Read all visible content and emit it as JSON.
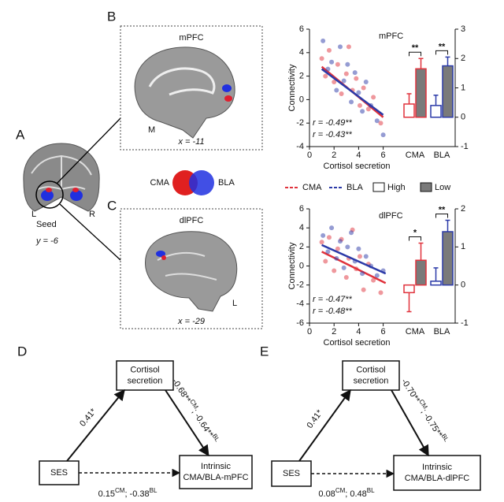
{
  "panels": {
    "a": "A",
    "b": "B",
    "c": "C",
    "d": "D",
    "e": "E"
  },
  "seed": {
    "left": "L",
    "right": "R",
    "label": "Seed",
    "coord": "y = -6"
  },
  "brain_b": {
    "title": "mPFC",
    "view": "M",
    "coord": "x = -11"
  },
  "brain_c": {
    "title": "dlPFC",
    "view": "L",
    "coord": "x = -29"
  },
  "overlap": {
    "left": "CMA",
    "right": "BLA"
  },
  "chart_data": [
    {
      "type": "scatter",
      "title": "mPFC",
      "xlabel": "Cortisol secretion",
      "ylabel": "Connectivity",
      "xlim": [
        0,
        7.5
      ],
      "ylim": [
        -4,
        6
      ],
      "xticks": [
        0,
        2,
        4,
        6
      ],
      "yticks": [
        -4,
        -2,
        0,
        2,
        4,
        6
      ],
      "series": [
        {
          "name": "CMA",
          "color": "#e0323c",
          "annotation": "r = -0.49**",
          "x": [
            1.0,
            1.3,
            1.6,
            2.0,
            2.3,
            2.6,
            3.0,
            3.2,
            3.5,
            3.8,
            4.1,
            4.4,
            4.8,
            5.2,
            5.8
          ],
          "y": [
            3.5,
            2.0,
            4.2,
            1.5,
            3.0,
            0.5,
            2.2,
            4.5,
            0.8,
            1.8,
            -0.5,
            1.0,
            -0.8,
            0.2,
            -2.0
          ],
          "trend": [
            [
              1,
              2.8
            ],
            [
              6,
              -1.5
            ]
          ]
        },
        {
          "name": "BLA",
          "color": "#2b3aa8",
          "annotation": "r = -0.43**",
          "x": [
            1.1,
            1.5,
            1.8,
            2.2,
            2.5,
            2.8,
            3.1,
            3.4,
            3.7,
            4.0,
            4.3,
            4.6,
            5.0,
            5.5,
            6.0
          ],
          "y": [
            5.0,
            2.6,
            3.2,
            0.8,
            4.5,
            1.6,
            3.0,
            -0.2,
            2.3,
            0.6,
            -1.0,
            1.5,
            -0.5,
            -1.8,
            -3.0
          ],
          "trend": [
            [
              1,
              2.6
            ],
            [
              6,
              -1.3
            ]
          ]
        }
      ]
    },
    {
      "type": "bar",
      "categories": [
        "CMA",
        "BLA"
      ],
      "edge_colors": [
        "#e0323c",
        "#2b3aa8"
      ],
      "ylim": [
        -1,
        3
      ],
      "yticks": [
        -1,
        0,
        1,
        2,
        3
      ],
      "significance": [
        "**",
        "**"
      ],
      "series": [
        {
          "name": "High",
          "color": "#ffffff",
          "values": [
            0.45,
            0.4
          ],
          "errors": [
            0.35,
            0.35
          ]
        },
        {
          "name": "Low",
          "color": "#7a7a7a",
          "values": [
            1.65,
            1.75
          ],
          "errors": [
            0.35,
            0.3
          ]
        }
      ]
    },
    {
      "type": "scatter",
      "title": "dlPFC",
      "xlabel": "Cortisol secretion",
      "ylabel": "Connectivity",
      "xlim": [
        0,
        7.5
      ],
      "ylim": [
        -6,
        6
      ],
      "xticks": [
        0,
        2,
        4,
        6
      ],
      "yticks": [
        -6,
        -4,
        -2,
        0,
        2,
        4,
        6
      ],
      "series": [
        {
          "color": "#e0323c",
          "annotation": "r = -0.47**",
          "x": [
            1.0,
            1.3,
            1.6,
            2.0,
            2.3,
            2.6,
            3.0,
            3.2,
            3.5,
            3.8,
            4.1,
            4.4,
            4.8,
            5.2,
            5.8
          ],
          "y": [
            2.5,
            0.5,
            3.0,
            -0.5,
            1.8,
            2.8,
            -1.2,
            0.8,
            3.8,
            -0.3,
            1.0,
            -2.5,
            0.2,
            -1.5,
            -2.8
          ],
          "trend": [
            [
              1,
              1.5
            ],
            [
              6.2,
              -1.8
            ]
          ]
        },
        {
          "color": "#2b3aa8",
          "annotation": "r = -0.48**",
          "x": [
            1.1,
            1.5,
            1.8,
            2.2,
            2.5,
            2.8,
            3.1,
            3.4,
            3.7,
            4.0,
            4.3,
            4.6,
            5.0,
            5.5,
            6.0
          ],
          "y": [
            3.2,
            1.5,
            4.0,
            0.8,
            2.6,
            -0.2,
            2.0,
            3.5,
            0.5,
            1.8,
            -0.8,
            1.0,
            0.0,
            -1.0,
            -0.5
          ],
          "trend": [
            [
              1,
              2.2
            ],
            [
              6.2,
              -0.8
            ]
          ]
        }
      ]
    },
    {
      "type": "bar",
      "categories": [
        "CMA",
        "BLA"
      ],
      "edge_colors": [
        "#e0323c",
        "#2b3aa8"
      ],
      "ylim": [
        -1,
        2
      ],
      "yticks": [
        -1,
        0,
        1,
        2
      ],
      "significance": [
        "*",
        "**"
      ],
      "series": [
        {
          "color": "#ffffff",
          "values": [
            -0.2,
            0.1
          ],
          "errors": [
            0.5,
            0.35
          ]
        },
        {
          "color": "#7a7a7a",
          "values": [
            0.65,
            1.4
          ],
          "errors": [
            0.45,
            0.3
          ]
        }
      ]
    }
  ],
  "mediation": [
    {
      "mediator": [
        "Cortisol",
        "secretion"
      ],
      "x": "SES",
      "y": [
        "Intrinsic",
        "CMA/BLA-mPFC"
      ],
      "a": "0.41*",
      "b": [
        "-0.68**",
        "CM",
        "; -0.64**",
        "BL"
      ],
      "c": [
        "0.15",
        "CM",
        "; -0.38",
        "BL"
      ]
    },
    {
      "mediator": [
        "Cortisol",
        "secretion"
      ],
      "x": "SES",
      "y": [
        "Intrinsic",
        "CMA/BLA-dlPFC"
      ],
      "a": "0.41*",
      "b": [
        "-0.70**",
        "CM",
        "; -0.75**",
        "BL"
      ],
      "c": [
        "0.08",
        "CM",
        "; 0.48",
        "BL"
      ]
    }
  ]
}
